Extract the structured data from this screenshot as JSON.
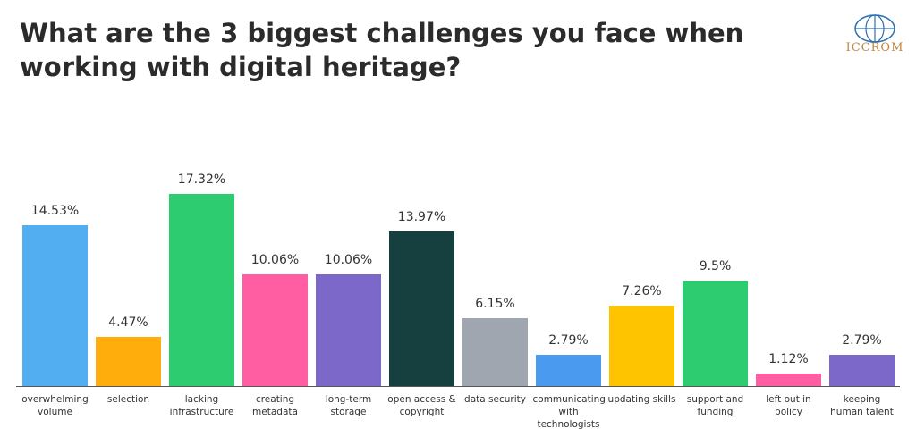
{
  "logo": "ICCROM",
  "chart_data": {
    "type": "bar",
    "title": "What are the 3 biggest challenges you face when working with digital heritage?",
    "categories": [
      "overwhelming volume",
      "selection",
      "lacking infrastructure",
      "creating metadata",
      "long-term storage",
      "open access & copyright",
      "data security",
      "communicating with technologists",
      "updating skills",
      "support and funding",
      "left out in policy",
      "keeping human talent"
    ],
    "values": [
      14.53,
      4.47,
      17.32,
      10.06,
      10.06,
      13.97,
      6.15,
      2.79,
      7.26,
      9.5,
      1.12,
      2.79
    ],
    "value_labels": [
      "14.53%",
      "4.47%",
      "17.32%",
      "10.06%",
      "10.06%",
      "13.97%",
      "6.15%",
      "2.79%",
      "7.26%",
      "9.5%",
      "1.12%",
      "2.79%"
    ],
    "colors": [
      "#52aef0",
      "#ffad0d",
      "#2ecc71",
      "#ff5fa2",
      "#7b68c8",
      "#16403f",
      "#a0a6b0",
      "#4a9af0",
      "#ffc400",
      "#2ecc71",
      "#ff5fa2",
      "#7b68c8"
    ]
  }
}
